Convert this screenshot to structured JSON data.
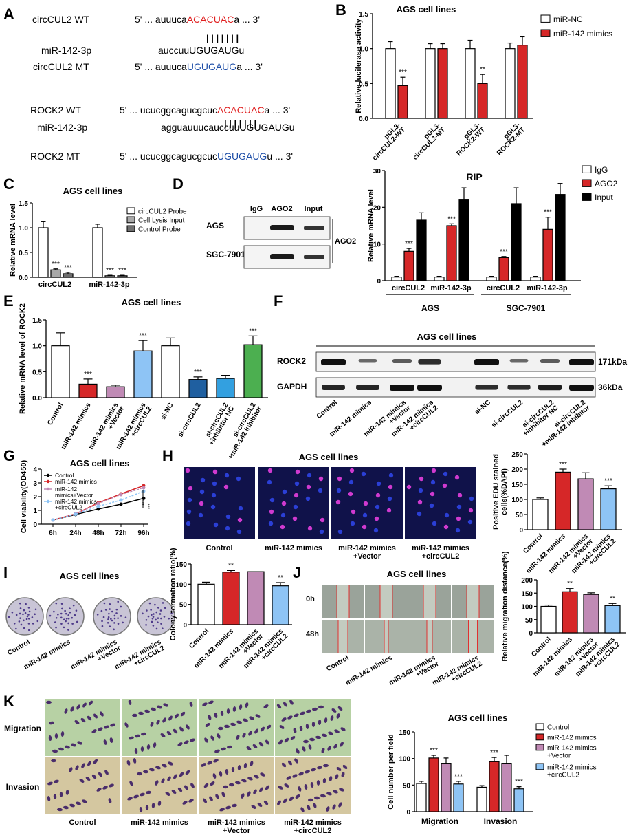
{
  "figure": {
    "panelA": {
      "letter": "A",
      "rows": [
        {
          "label": "circCUL2 WT",
          "prefix": "5' ... auuuca",
          "highlight": "ACACUAC",
          "suffix": "a ... 3'",
          "hl_color": "#e02020"
        },
        {
          "label": "miR-142-3p",
          "prefix": "auccuu",
          "highlight": "UGUGAUG",
          "suffix": "u",
          "hl_color": "#000000"
        },
        {
          "label": "circCUL2 MT",
          "prefix": "5' ... auuuca",
          "highlight": "UGUGAUG",
          "suffix": "a ... 3'",
          "hl_color": "#1f4fa8"
        },
        {
          "label": "ROCK2 WT",
          "prefix": "5' ... ucucggcagucgcuc",
          "highlight": "ACACUAC",
          "suffix": "a ... 3'",
          "hl_color": "#e02020"
        },
        {
          "label": "miR-142-3p",
          "prefix": "agguauuucauccuu",
          "highlight": "UGUGAUG",
          "suffix": "u",
          "hl_color": "#000000"
        },
        {
          "label": "ROCK2 MT",
          "prefix": "5' ... ucucggcagucgcuc",
          "highlight": "UGUGAUG",
          "suffix": "u ... 3'",
          "hl_color": "#1f4fa8"
        }
      ],
      "pair_marks": "| | | | | | |"
    },
    "panelB_letter": "B",
    "panelC_letter": "C",
    "panelD": {
      "letter": "D",
      "cols": [
        "IgG",
        "AGO2",
        "Input"
      ],
      "rows": [
        "AGS",
        "SGC-7901"
      ],
      "side_label": "AGO2"
    },
    "panelE_letter": "E",
    "panelF": {
      "letter": "F",
      "title": "AGS cell lines",
      "bands": [
        "ROCK2",
        "GAPDH"
      ],
      "sizes": [
        "171kDa",
        "36kDa"
      ],
      "lanes": [
        "Control",
        "miR-142 mimics",
        "miR-142 mimics\n+Vector",
        "miR-142 mimics\n+circCUL2",
        "si-NC",
        "si-circCUL2",
        "si-circCUL2\n+inhibitor NC",
        "si-circCUL2\n+miR-142 inhibitor"
      ],
      "intensity_rock2": [
        1.0,
        0.35,
        0.45,
        0.8,
        1.0,
        0.35,
        0.45,
        1.0
      ],
      "intensity_gapdh": [
        0.85,
        0.85,
        1.0,
        1.0,
        0.8,
        0.8,
        0.9,
        1.0
      ]
    },
    "panelG_letter": "G",
    "panelH": {
      "letter": "H",
      "title": "AGS cell lines",
      "image_labels": [
        "Control",
        "miR-142 mimics",
        "miR-142 mimics\n+Vector",
        "miR-142 mimics\n+circCUL2"
      ]
    },
    "panelI": {
      "letter": "I",
      "title": "AGS cell lines",
      "image_labels": [
        "Control",
        "miR-142 mimics",
        "miR-142 mimics\n+Vector",
        "miR-142 mimics\n+circCUL2"
      ]
    },
    "panelJ": {
      "letter": "J",
      "title": "AGS cell lines",
      "row_labels": [
        "0h",
        "48h"
      ],
      "image_labels": [
        "Control",
        "miR-142 mimics",
        "miR-142 mimics\n+Vector",
        "miR-142 mimics\n+circCUL2"
      ]
    },
    "panelK": {
      "letter": "K",
      "row_labels": [
        "Migration",
        "Invasion"
      ],
      "image_labels": [
        "Control",
        "miR-142 mimics",
        "miR-142 mimics\n+Vector",
        "miR-142 mimics\n+circCUL2"
      ]
    }
  },
  "colors": {
    "white": "#ffffff",
    "red": "#d62728",
    "mauve": "#c08ab5",
    "lightblue": "#8ec4f5",
    "lightgray": "#a8a8a8",
    "darkgray": "#6e6e6e",
    "black": "#000000",
    "navy": "#1f5fa0",
    "sky": "#33a0e0",
    "green": "#4caf50"
  },
  "chart_data": [
    {
      "id": "B",
      "type": "bar",
      "title": "AGS cell lines",
      "xlabel": "",
      "ylabel": "Relative luciferase activity",
      "categories": [
        "pGL3-\ncircCUL2-WT",
        "pGL3-\ncircCUL2-MT",
        "pGL3-\nROCK2-WT",
        "pGL3-\nROCK2-MT"
      ],
      "series": [
        {
          "name": "miR-NC",
          "values": [
            1.0,
            1.0,
            1.0,
            1.0
          ],
          "errors": [
            0.1,
            0.07,
            0.12,
            0.08
          ],
          "color": "#ffffff"
        },
        {
          "name": "miR-142 mimics",
          "values": [
            0.47,
            1.0,
            0.5,
            1.05
          ],
          "errors": [
            0.12,
            0.07,
            0.13,
            0.12
          ],
          "color": "#d62728"
        }
      ],
      "annotations": [
        {
          "category": 0,
          "series": 1,
          "text": "***"
        },
        {
          "category": 2,
          "series": 1,
          "text": "**"
        }
      ],
      "ylim": [
        0,
        1.5
      ],
      "ticks": [
        0.0,
        0.5,
        1.0,
        1.5
      ],
      "legend": "top-right"
    },
    {
      "id": "C",
      "type": "bar",
      "title": "AGS cell lines",
      "xlabel": "",
      "ylabel": "Relative mRNA level",
      "categories": [
        "circCUL2",
        "miR-142-3p"
      ],
      "series": [
        {
          "name": "circCUL2 Probe",
          "values": [
            1.0,
            1.0
          ],
          "errors": [
            0.12,
            0.07
          ],
          "color": "#ffffff"
        },
        {
          "name": "Cell Lysis Input",
          "values": [
            0.15,
            0.03
          ],
          "errors": [
            0.02,
            0.01
          ],
          "color": "#a8a8a8"
        },
        {
          "name": "Control Probe",
          "values": [
            0.07,
            0.03
          ],
          "errors": [
            0.03,
            0.01
          ],
          "color": "#6e6e6e"
        }
      ],
      "annotations": [
        {
          "category": 0,
          "series": 1,
          "text": "***"
        },
        {
          "category": 0,
          "series": 2,
          "text": "***"
        },
        {
          "category": 1,
          "series": 1,
          "text": "***"
        },
        {
          "category": 1,
          "series": 2,
          "text": "***"
        }
      ],
      "ylim": [
        0,
        1.5
      ],
      "ticks": [
        0.0,
        0.5,
        1.0,
        1.5
      ],
      "legend": "top-right"
    },
    {
      "id": "RIP",
      "type": "bar",
      "title": "RIP",
      "xlabel": "",
      "ylabel": "Relative mRNA level",
      "categories": [
        "circCUL2",
        "miR-142-3p",
        "circCUL2",
        "miR-142-3p"
      ],
      "groups": [
        {
          "label": "AGS",
          "from": 0,
          "to": 1
        },
        {
          "label": "SGC-7901",
          "from": 2,
          "to": 3
        }
      ],
      "series": [
        {
          "name": "IgG",
          "values": [
            1.0,
            1.0,
            1.0,
            1.0
          ],
          "errors": [
            0.2,
            0.2,
            0.2,
            0.2
          ],
          "color": "#ffffff"
        },
        {
          "name": "AGO2",
          "values": [
            8.0,
            15.0,
            6.3,
            14.0
          ],
          "errors": [
            0.8,
            0.5,
            0.3,
            3.3
          ],
          "color": "#d62728"
        },
        {
          "name": "Input",
          "values": [
            16.5,
            22.0,
            21.0,
            23.5
          ],
          "errors": [
            2.0,
            3.3,
            4.3,
            3.0
          ],
          "color": "#000000"
        }
      ],
      "annotations": [
        {
          "category": 0,
          "series": 1,
          "text": "***"
        },
        {
          "category": 1,
          "series": 1,
          "text": "***"
        },
        {
          "category": 2,
          "series": 1,
          "text": "***"
        },
        {
          "category": 3,
          "series": 1,
          "text": "***"
        }
      ],
      "ylim": [
        0,
        30
      ],
      "ticks": [
        0,
        10,
        20,
        30
      ],
      "legend": "top-right"
    },
    {
      "id": "E",
      "type": "bar",
      "title": "AGS cell lines",
      "xlabel": "",
      "ylabel": "Relative mRNA level of ROCK2",
      "categories": [
        "Control",
        "miR-142 mimics",
        "miR-142 mimics\n+Vector",
        "miR-142 mimics\n+circCUL2",
        "si-NC",
        "si-circCUL2",
        "si-circCUL2\n+inhibitor NC",
        "si-circCUL2\n+miR-142 inhibitor"
      ],
      "values": [
        1.0,
        0.26,
        0.21,
        0.9,
        1.0,
        0.35,
        0.37,
        1.02
      ],
      "errors": [
        0.25,
        0.1,
        0.03,
        0.2,
        0.15,
        0.05,
        0.06,
        0.17
      ],
      "colors": [
        "#ffffff",
        "#d62728",
        "#c08ab5",
        "#8ec4f5",
        "#ffffff",
        "#1f5fa0",
        "#33a0e0",
        "#4caf50"
      ],
      "annotations": [
        {
          "category": 1,
          "text": "***"
        },
        {
          "category": 3,
          "text": "***"
        },
        {
          "category": 5,
          "text": "***"
        },
        {
          "category": 7,
          "text": "***"
        }
      ],
      "ylim": [
        0,
        1.5
      ],
      "ticks": [
        0.0,
        0.5,
        1.0,
        1.5
      ]
    },
    {
      "id": "G",
      "type": "line",
      "title": "AGS cell lines",
      "xlabel": "",
      "ylabel": "Cell viability(OD450)",
      "x": [
        "6h",
        "24h",
        "48h",
        "72h",
        "96h"
      ],
      "series": [
        {
          "name": "Control",
          "values": [
            0.3,
            0.7,
            1.1,
            1.45,
            1.88
          ],
          "color": "#000000"
        },
        {
          "name": "miR-142 mimics",
          "values": [
            0.3,
            0.75,
            1.55,
            2.2,
            2.8
          ],
          "color": "#d62728"
        },
        {
          "name": "miR-142\nmimics+Vector",
          "values": [
            0.3,
            0.75,
            1.5,
            2.15,
            2.65
          ],
          "color": "#c08ab5"
        },
        {
          "name": "miR-142 mimics\n+circCUL2",
          "values": [
            0.3,
            0.72,
            1.3,
            1.75,
            2.4
          ],
          "color": "#8ec4f5"
        }
      ],
      "annotations": [
        "***",
        "***"
      ],
      "ylim": [
        0,
        4
      ],
      "ticks": [
        0,
        1,
        2,
        3,
        4
      ],
      "legend": "top-left"
    },
    {
      "id": "H",
      "type": "bar",
      "title": "",
      "xlabel": "",
      "ylabel": "Positive EDU stained\ncells(%DAPI)",
      "categories": [
        "Control",
        "miR-142 mimics",
        "miR-142 mimics\n+Vector",
        "miR-142 mimics\n+circCUL2"
      ],
      "values": [
        100,
        190,
        168,
        135
      ],
      "errors": [
        5,
        10,
        20,
        10
      ],
      "colors": [
        "#ffffff",
        "#d62728",
        "#c08ab5",
        "#8ec4f5"
      ],
      "annotations": [
        {
          "category": 1,
          "text": "***"
        },
        {
          "category": 3,
          "text": "***"
        }
      ],
      "ylim": [
        0,
        250
      ],
      "ticks": [
        0,
        50,
        100,
        150,
        200,
        250
      ]
    },
    {
      "id": "I",
      "type": "bar",
      "title": "",
      "xlabel": "",
      "ylabel": "Colony formation ratio(%)",
      "categories": [
        "Control",
        "miR-142 mimics",
        "miR-142 mimics\n+Vector",
        "miR-142 mimics\n+circCUL2"
      ],
      "values": [
        100,
        130,
        131,
        96
      ],
      "errors": [
        5,
        4,
        0,
        8
      ],
      "colors": [
        "#ffffff",
        "#d62728",
        "#c08ab5",
        "#8ec4f5"
      ],
      "annotations": [
        {
          "category": 1,
          "text": "**"
        },
        {
          "category": 3,
          "text": "**"
        }
      ],
      "ylim": [
        0,
        150
      ],
      "ticks": [
        0,
        50,
        100,
        150
      ]
    },
    {
      "id": "J",
      "type": "bar",
      "title": "",
      "xlabel": "",
      "ylabel": "Relative migration distance(%)",
      "categories": [
        "Control",
        "miR-142 mimics",
        "miR-142 mimics\n+Vector",
        "miR-142 mimics\n+circCUL2"
      ],
      "values": [
        100,
        155,
        145,
        103
      ],
      "errors": [
        5,
        12,
        6,
        8
      ],
      "colors": [
        "#ffffff",
        "#d62728",
        "#c08ab5",
        "#8ec4f5"
      ],
      "annotations": [
        {
          "category": 1,
          "text": "**"
        },
        {
          "category": 3,
          "text": "**"
        }
      ],
      "ylim": [
        0,
        200
      ],
      "ticks": [
        0,
        50,
        100,
        150,
        200
      ]
    },
    {
      "id": "K",
      "type": "bar",
      "title": "AGS cell lines",
      "xlabel": "",
      "ylabel": "Cell number per field",
      "categories": [
        "Migration",
        "Invasion"
      ],
      "series": [
        {
          "name": "Control",
          "values": [
            53,
            46
          ],
          "errors": [
            4,
            3
          ],
          "color": "#ffffff"
        },
        {
          "name": "miR-142 mimics",
          "values": [
            101,
            94
          ],
          "errors": [
            5,
            8
          ],
          "color": "#d62728"
        },
        {
          "name": "miR-142 mimics\n+Vector",
          "values": [
            91,
            91
          ],
          "errors": [
            10,
            15
          ],
          "color": "#c08ab5"
        },
        {
          "name": "miR-142 mimics\n+circCUL2",
          "values": [
            52,
            43
          ],
          "errors": [
            5,
            4
          ],
          "color": "#8ec4f5"
        }
      ],
      "annotations": [
        {
          "category": 0,
          "series": 1,
          "text": "***"
        },
        {
          "category": 0,
          "series": 3,
          "text": "***"
        },
        {
          "category": 1,
          "series": 1,
          "text": "***"
        },
        {
          "category": 1,
          "series": 3,
          "text": "***"
        }
      ],
      "ylim": [
        0,
        150
      ],
      "ticks": [
        0,
        50,
        100,
        150
      ],
      "legend": "top-right"
    }
  ]
}
